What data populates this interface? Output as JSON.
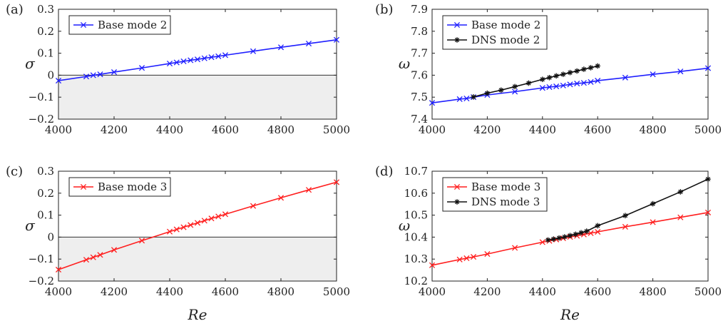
{
  "colors": {
    "blue": "#1f1fff",
    "red": "#ff1f1f",
    "black": "#111111",
    "shade": "#eeeeee"
  },
  "chart_data": [
    {
      "id": "a",
      "type": "line",
      "panel_label": "(a)",
      "xlabel": "",
      "ylabel": "σ",
      "xlim": [
        4000,
        5000
      ],
      "ylim": [
        -0.2,
        0.3
      ],
      "xticks": [
        "4000",
        "4200",
        "4400",
        "4600",
        "4800",
        "5000"
      ],
      "yticks": [
        "−0.2",
        "−0.1",
        "0",
        "0.1",
        "0.2",
        "0.3"
      ],
      "shade_below_zero": true,
      "legend": "top-left",
      "series": [
        {
          "name": "Base mode 2",
          "color": "blue",
          "marker": "x",
          "x": [
            4000,
            4100,
            4125,
            4150,
            4200,
            4300,
            4400,
            4425,
            4450,
            4475,
            4500,
            4525,
            4550,
            4575,
            4600,
            4700,
            4800,
            4900,
            5000
          ],
          "y": [
            -0.025,
            -0.006,
            0.0,
            0.004,
            0.014,
            0.033,
            0.053,
            0.058,
            0.063,
            0.068,
            0.072,
            0.077,
            0.082,
            0.086,
            0.091,
            0.109,
            0.127,
            0.144,
            0.161
          ]
        }
      ]
    },
    {
      "id": "b",
      "type": "line",
      "panel_label": "(b)",
      "xlabel": "",
      "ylabel": "ω",
      "xlim": [
        4000,
        5000
      ],
      "ylim": [
        7.4,
        7.9
      ],
      "xticks": [
        "4000",
        "4200",
        "4400",
        "4600",
        "4800",
        "5000"
      ],
      "yticks": [
        "7.4",
        "7.5",
        "7.6",
        "7.7",
        "7.8",
        "7.9"
      ],
      "shade_below_zero": false,
      "legend": "top-left",
      "series": [
        {
          "name": "Base mode 2",
          "color": "blue",
          "marker": "x",
          "x": [
            4000,
            4100,
            4125,
            4150,
            4200,
            4300,
            4400,
            4425,
            4450,
            4475,
            4500,
            4525,
            4550,
            4575,
            4600,
            4700,
            4800,
            4900,
            5000
          ],
          "y": [
            7.474,
            7.491,
            7.494,
            7.5,
            7.51,
            7.525,
            7.542,
            7.546,
            7.549,
            7.553,
            7.558,
            7.562,
            7.565,
            7.569,
            7.575,
            7.589,
            7.604,
            7.617,
            7.632
          ]
        },
        {
          "name": "DNS mode 2",
          "color": "black",
          "marker": "star",
          "x": [
            4150,
            4200,
            4250,
            4300,
            4350,
            4400,
            4425,
            4450,
            4475,
            4500,
            4525,
            4550,
            4575,
            4600
          ],
          "y": [
            7.501,
            7.518,
            7.532,
            7.548,
            7.564,
            7.581,
            7.589,
            7.597,
            7.604,
            7.612,
            7.619,
            7.627,
            7.634,
            7.642
          ]
        }
      ]
    },
    {
      "id": "c",
      "type": "line",
      "panel_label": "(c)",
      "xlabel": "Re",
      "ylabel": "σ",
      "xlim": [
        4000,
        5000
      ],
      "ylim": [
        -0.2,
        0.3
      ],
      "xticks": [
        "4000",
        "4200",
        "4400",
        "4600",
        "4800",
        "5000"
      ],
      "yticks": [
        "−0.2",
        "−0.1",
        "0",
        "0.1",
        "0.2",
        "0.3"
      ],
      "shade_below_zero": true,
      "legend": "top-left",
      "series": [
        {
          "name": "Base mode 3",
          "color": "red",
          "marker": "x",
          "x": [
            4000,
            4100,
            4125,
            4150,
            4200,
            4300,
            4400,
            4425,
            4450,
            4475,
            4500,
            4525,
            4550,
            4575,
            4600,
            4700,
            4800,
            4900,
            5000
          ],
          "y": [
            -0.148,
            -0.103,
            -0.092,
            -0.081,
            -0.058,
            -0.016,
            0.025,
            0.035,
            0.045,
            0.055,
            0.065,
            0.075,
            0.085,
            0.094,
            0.104,
            0.142,
            0.179,
            0.215,
            0.25
          ]
        }
      ]
    },
    {
      "id": "d",
      "type": "line",
      "panel_label": "(d)",
      "xlabel": "Re",
      "ylabel": "ω",
      "xlim": [
        4000,
        5000
      ],
      "ylim": [
        10.2,
        10.7
      ],
      "xticks": [
        "4000",
        "4200",
        "4400",
        "4600",
        "4800",
        "5000"
      ],
      "yticks": [
        "10.2",
        "10.3",
        "10.4",
        "10.5",
        "10.6",
        "10.7"
      ],
      "shade_below_zero": false,
      "legend": "top-left",
      "series": [
        {
          "name": "Base mode 3",
          "color": "red",
          "marker": "x",
          "x": [
            4000,
            4100,
            4125,
            4150,
            4200,
            4300,
            4400,
            4425,
            4450,
            4475,
            4500,
            4525,
            4550,
            4575,
            4600,
            4700,
            4800,
            4900,
            5000
          ],
          "y": [
            10.272,
            10.298,
            10.304,
            10.31,
            10.323,
            10.351,
            10.377,
            10.383,
            10.389,
            10.395,
            10.401,
            10.406,
            10.412,
            10.418,
            10.424,
            10.447,
            10.468,
            10.49,
            10.512
          ]
        },
        {
          "name": "DNS mode 3",
          "color": "black",
          "marker": "star",
          "x": [
            4420,
            4440,
            4460,
            4480,
            4500,
            4520,
            4540,
            4560,
            4600,
            4700,
            4800,
            4900,
            5000
          ],
          "y": [
            10.387,
            10.391,
            10.396,
            10.401,
            10.407,
            10.413,
            10.42,
            10.427,
            10.452,
            10.498,
            10.552,
            10.606,
            10.664
          ]
        }
      ]
    }
  ]
}
